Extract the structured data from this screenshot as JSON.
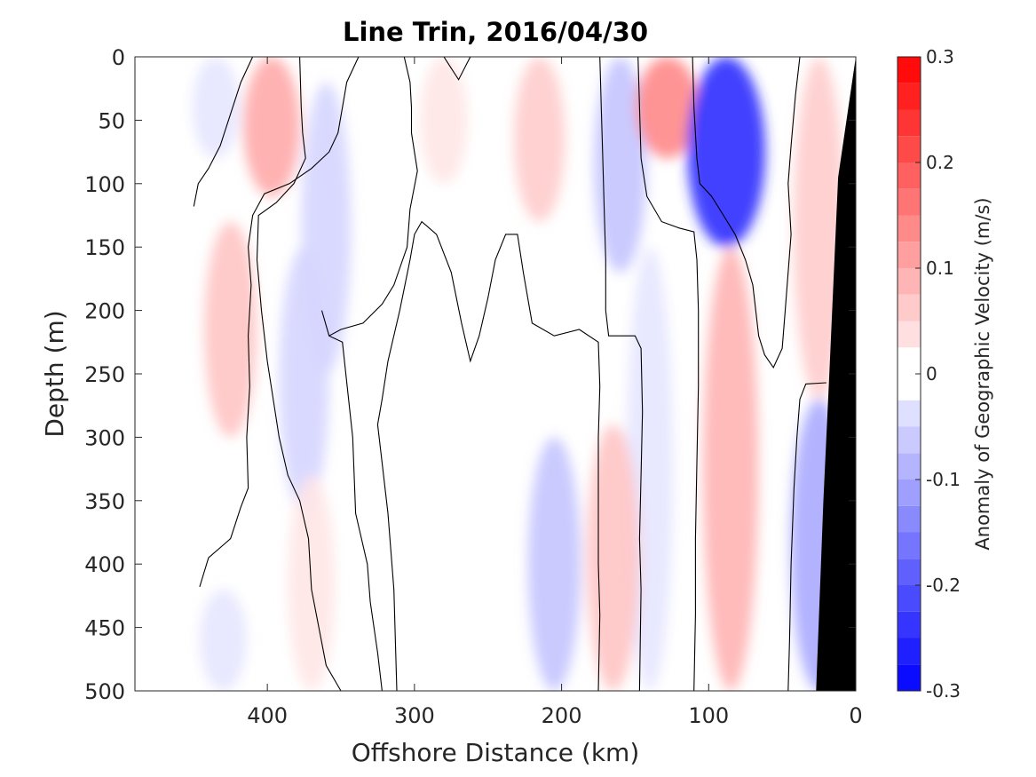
{
  "chart_data": {
    "type": "heatmap",
    "title": "Line Trin, 2016/04/30",
    "xlabel": "Offshore Distance (km)",
    "ylabel": "Depth (m)",
    "xlim": [
      490,
      0
    ],
    "ylim": [
      0,
      500
    ],
    "x_reversed": true,
    "y_reversed": true,
    "x_ticks": [
      400,
      300,
      200,
      100,
      0
    ],
    "y_ticks": [
      0,
      50,
      100,
      150,
      200,
      250,
      300,
      350,
      400,
      450,
      500
    ],
    "colorbar": {
      "label": "Anomaly of Geographic Velocity (m/s)",
      "range": [
        -0.3,
        0.3
      ],
      "ticks": [
        0.3,
        0.2,
        0.1,
        0,
        -0.1,
        -0.2,
        -0.3
      ],
      "levels": [
        -0.3,
        -0.275,
        -0.25,
        -0.225,
        -0.2,
        -0.175,
        -0.15,
        -0.125,
        -0.1,
        -0.075,
        -0.05,
        -0.025,
        0,
        0.025,
        0.05,
        0.075,
        0.1,
        0.125,
        0.15,
        0.175,
        0.2,
        0.225,
        0.25,
        0.275,
        0.3
      ],
      "colormap": "blue-white-red",
      "color_negative": "#0000ff",
      "color_positive": "#ff0000",
      "color_zero": "#ffffff"
    },
    "anomaly_features": [
      {
        "sign": "negative",
        "x_km": 435,
        "depth_top": 0,
        "depth_bottom": 80,
        "peak": -0.03
      },
      {
        "sign": "positive",
        "x_km": 397,
        "depth_top": 0,
        "depth_bottom": 110,
        "peak": 0.1
      },
      {
        "sign": "positive",
        "x_km": 425,
        "depth_top": 130,
        "depth_bottom": 300,
        "peak": 0.07
      },
      {
        "sign": "negative",
        "x_km": 360,
        "depth_top": 20,
        "depth_bottom": 250,
        "peak": -0.05
      },
      {
        "sign": "negative",
        "x_km": 375,
        "depth_top": 150,
        "depth_bottom": 360,
        "peak": -0.05
      },
      {
        "sign": "positive",
        "x_km": 280,
        "depth_top": 0,
        "depth_bottom": 100,
        "peak": 0.03
      },
      {
        "sign": "positive",
        "x_km": 215,
        "depth_top": 0,
        "depth_bottom": 130,
        "peak": 0.06
      },
      {
        "sign": "negative",
        "x_km": 160,
        "depth_top": 0,
        "depth_bottom": 170,
        "peak": -0.07
      },
      {
        "sign": "positive",
        "x_km": 128,
        "depth_top": 0,
        "depth_bottom": 80,
        "peak": 0.14
      },
      {
        "sign": "negative",
        "x_km": 88,
        "depth_top": 0,
        "depth_bottom": 150,
        "peak": -0.25
      },
      {
        "sign": "positive",
        "x_km": 25,
        "depth_top": 0,
        "depth_bottom": 270,
        "peak": 0.06
      },
      {
        "sign": "positive",
        "x_km": 85,
        "depth_top": 150,
        "depth_bottom": 500,
        "peak": 0.09
      },
      {
        "sign": "negative",
        "x_km": 140,
        "depth_top": 150,
        "depth_bottom": 500,
        "peak": -0.03
      },
      {
        "sign": "positive",
        "x_km": 165,
        "depth_top": 290,
        "depth_bottom": 500,
        "peak": 0.07
      },
      {
        "sign": "negative",
        "x_km": 205,
        "depth_top": 300,
        "depth_bottom": 500,
        "peak": -0.07
      },
      {
        "sign": "positive",
        "x_km": 370,
        "depth_top": 330,
        "depth_bottom": 500,
        "peak": 0.03
      },
      {
        "sign": "negative",
        "x_km": 430,
        "depth_top": 420,
        "depth_bottom": 500,
        "peak": -0.03
      },
      {
        "sign": "negative",
        "x_km": 25,
        "depth_top": 270,
        "depth_bottom": 500,
        "peak": -0.1
      }
    ],
    "zero_contours": [
      [
        [
          450,
          118
        ],
        [
          447,
          100
        ],
        [
          440,
          88
        ],
        [
          432,
          70
        ],
        [
          425,
          45
        ],
        [
          418,
          20
        ],
        [
          410,
          0
        ]
      ],
      [
        [
          338,
          0
        ],
        [
          346,
          20
        ],
        [
          349,
          40
        ],
        [
          352,
          60
        ],
        [
          358,
          75
        ],
        [
          370,
          88
        ],
        [
          385,
          100
        ],
        [
          402,
          108
        ],
        [
          410,
          125
        ],
        [
          413,
          150
        ],
        [
          411,
          180
        ],
        [
          413,
          220
        ],
        [
          412,
          260
        ],
        [
          414,
          300
        ],
        [
          413,
          340
        ],
        [
          418,
          355
        ],
        [
          425,
          380
        ],
        [
          440,
          395
        ],
        [
          446,
          418
        ]
      ],
      [
        [
          378,
          0
        ],
        [
          377,
          40
        ],
        [
          376,
          60
        ],
        [
          374,
          80
        ],
        [
          382,
          100
        ],
        [
          394,
          115
        ],
        [
          406,
          125
        ],
        [
          407,
          160
        ],
        [
          404,
          200
        ],
        [
          400,
          240
        ],
        [
          392,
          300
        ],
        [
          386,
          330
        ],
        [
          378,
          350
        ],
        [
          372,
          380
        ],
        [
          370,
          420
        ],
        [
          360,
          480
        ],
        [
          350,
          500
        ]
      ],
      [
        [
          307,
          0
        ],
        [
          303,
          20
        ],
        [
          302,
          40
        ],
        [
          302,
          60
        ],
        [
          298,
          90
        ],
        [
          303,
          120
        ],
        [
          305,
          150
        ],
        [
          308,
          160
        ],
        [
          314,
          180
        ],
        [
          322,
          195
        ],
        [
          335,
          210
        ],
        [
          350,
          215
        ],
        [
          358,
          220
        ]
      ],
      [
        [
          363,
          200
        ],
        [
          358,
          220
        ],
        [
          349,
          225
        ],
        [
          342,
          300
        ],
        [
          340,
          360
        ],
        [
          332,
          400
        ],
        [
          330,
          430
        ],
        [
          325,
          470
        ],
        [
          322,
          500
        ]
      ],
      [
        [
          280,
          0
        ],
        [
          270,
          18
        ],
        [
          262,
          0
        ]
      ],
      [
        [
          312,
          500
        ],
        [
          314,
          420
        ],
        [
          318,
          360
        ],
        [
          322,
          320
        ],
        [
          325,
          290
        ],
        [
          322,
          270
        ],
        [
          318,
          240
        ],
        [
          310,
          200
        ],
        [
          303,
          160
        ],
        [
          300,
          140
        ],
        [
          295,
          130
        ],
        [
          285,
          140
        ],
        [
          275,
          170
        ],
        [
          268,
          210
        ],
        [
          262,
          240
        ],
        [
          256,
          220
        ],
        [
          250,
          190
        ],
        [
          245,
          160
        ],
        [
          238,
          140
        ],
        [
          230,
          140
        ],
        [
          226,
          170
        ],
        [
          220,
          210
        ],
        [
          205,
          220
        ],
        [
          188,
          215
        ],
        [
          175,
          225
        ],
        [
          174,
          260
        ],
        [
          175,
          300
        ],
        [
          175,
          360
        ],
        [
          175,
          400
        ],
        [
          174,
          440
        ],
        [
          175,
          500
        ]
      ],
      [
        [
          174,
          0
        ],
        [
          173,
          40
        ],
        [
          172,
          80
        ],
        [
          171,
          120
        ],
        [
          170,
          160
        ],
        [
          170,
          200
        ],
        [
          168,
          220
        ],
        [
          150,
          220
        ],
        [
          146,
          230
        ],
        [
          145,
          280
        ],
        [
          146,
          330
        ],
        [
          147,
          380
        ],
        [
          146,
          420
        ],
        [
          147,
          500
        ]
      ],
      [
        [
          148,
          0
        ],
        [
          147,
          40
        ],
        [
          146,
          80
        ],
        [
          142,
          110
        ],
        [
          132,
          130
        ],
        [
          120,
          135
        ],
        [
          110,
          138
        ],
        [
          108,
          160
        ],
        [
          107,
          200
        ],
        [
          107,
          260
        ],
        [
          108,
          320
        ],
        [
          109,
          380
        ],
        [
          109,
          440
        ],
        [
          110,
          500
        ]
      ],
      [
        [
          111,
          0
        ],
        [
          110,
          40
        ],
        [
          108,
          80
        ],
        [
          106,
          100
        ],
        [
          98,
          110
        ],
        [
          90,
          125
        ],
        [
          82,
          140
        ],
        [
          75,
          160
        ],
        [
          70,
          180
        ],
        [
          68,
          200
        ],
        [
          66,
          220
        ],
        [
          62,
          235
        ],
        [
          56,
          245
        ],
        [
          50,
          230
        ],
        [
          48,
          200
        ],
        [
          46,
          170
        ],
        [
          44,
          140
        ],
        [
          46,
          100
        ],
        [
          44,
          70
        ],
        [
          41,
          30
        ],
        [
          38,
          0
        ]
      ],
      [
        [
          46,
          500
        ],
        [
          45,
          460
        ],
        [
          44,
          400
        ],
        [
          42,
          340
        ],
        [
          40,
          300
        ],
        [
          38,
          270
        ],
        [
          34,
          258
        ],
        [
          20,
          257
        ]
      ]
    ],
    "bathymetry": {
      "color": "#000000",
      "surface_x_km": 0,
      "bottom_x_km": 27,
      "description_points": [
        [
          0,
          0
        ],
        [
          12,
          95
        ],
        [
          18,
          250
        ],
        [
          22,
          350
        ],
        [
          27,
          500
        ]
      ]
    }
  }
}
